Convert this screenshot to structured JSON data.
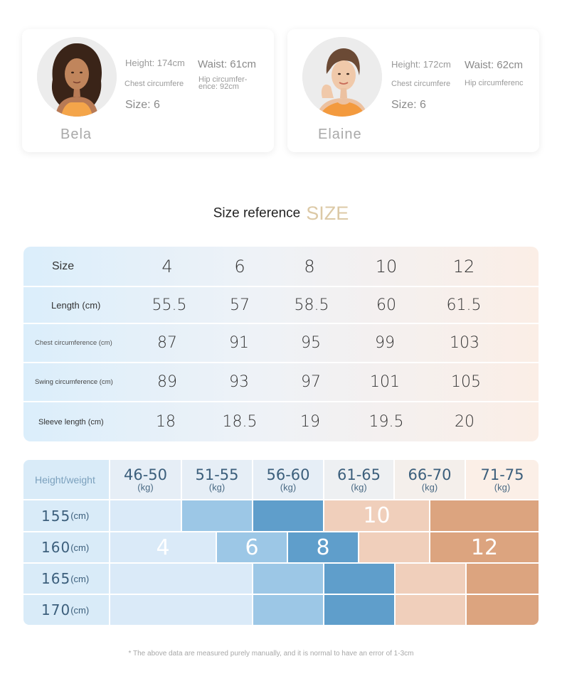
{
  "models": [
    {
      "name": "Bela",
      "height": "Height: 174cm",
      "waist": "Waist: 61cm",
      "chest": "Chest circumfere",
      "hip": "Hip circumfer-\nence: 92cm",
      "size": "Size: 6"
    },
    {
      "name": "Elaine",
      "height": "Height: 172cm",
      "waist": "Waist: 62cm",
      "chest": "Chest circumfere",
      "hip": "Hip circumferenc",
      "size": "Size: 6"
    }
  ],
  "title": {
    "main": "Size reference",
    "accent": "SIZE"
  },
  "size_table": {
    "header_label": "Size",
    "sizes": [
      "4",
      "6",
      "8",
      "10",
      "12"
    ],
    "rows": [
      {
        "label": "Length (cm)",
        "values": [
          "55.5",
          "57",
          "58.5",
          "60",
          "61.5"
        ]
      },
      {
        "label": "Chest circumference (cm)",
        "values": [
          "87",
          "91",
          "95",
          "99",
          "103"
        ]
      },
      {
        "label": "Swing circumference (cm)",
        "values": [
          "89",
          "93",
          "97",
          "101",
          "105"
        ]
      },
      {
        "label": "Sleeve length (cm)",
        "values": [
          "18",
          "18.5",
          "19",
          "19.5",
          "20"
        ]
      }
    ]
  },
  "height_weight": {
    "corner_label": "Height/weight",
    "weights": [
      {
        "range": "46-50",
        "unit": "(kg)"
      },
      {
        "range": "51-55",
        "unit": "(kg)"
      },
      {
        "range": "56-60",
        "unit": "(kg)"
      },
      {
        "range": "61-65",
        "unit": "(kg)"
      },
      {
        "range": "66-70",
        "unit": "(kg)"
      },
      {
        "range": "71-75",
        "unit": "(kg)"
      }
    ],
    "heights": [
      {
        "value": "155",
        "unit": "(cm)"
      },
      {
        "value": "160",
        "unit": "(cm)"
      },
      {
        "value": "165",
        "unit": "(cm)"
      },
      {
        "value": "170",
        "unit": "(cm)"
      }
    ],
    "size_labels": {
      "s4": "4",
      "s6": "6",
      "s8": "8",
      "s10": "10",
      "s12": "12"
    },
    "colors": {
      "size4": "#daeaf8",
      "size6": "#9cc7e6",
      "size8": "#5f9ecb",
      "size10": "#f0cfbb",
      "size12": "#dca47f"
    }
  },
  "footnote": "* The above data are measured purely manually, and it is normal to have an error of 1-3cm"
}
